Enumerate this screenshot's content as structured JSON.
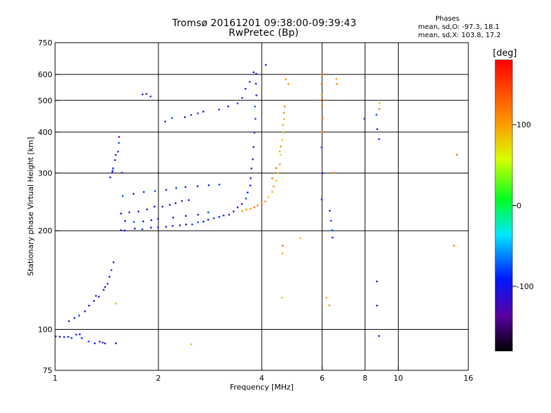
{
  "title": {
    "line1": "Tromsø 20161201 09:38:00-09:39:43",
    "line2": "RwPretec (Bp)"
  },
  "phase_box": {
    "heading": "Phases",
    "line_o": "mean, sd,O: -97.3, 18.1",
    "line_x": "mean, sd,X: 103.8, 17.2"
  },
  "chart_data": {
    "type": "scatter",
    "xlabel": "Frequency [MHz]",
    "ylabel": "Stationary phase Virtual Height [km]",
    "x_scale": "log",
    "y_scale": "log",
    "xlim": [
      1,
      16
    ],
    "ylim": [
      75,
      750
    ],
    "x_ticks": [
      1,
      2,
      4,
      6,
      8,
      10,
      16
    ],
    "x_tick_labels": [
      "1",
      "2",
      "4",
      "6",
      "8",
      "10",
      "16"
    ],
    "y_ticks": [
      75,
      100,
      200,
      300,
      400,
      500,
      600,
      750
    ],
    "y_tick_labels": [
      "75",
      "100",
      "200",
      "300",
      "400",
      "500",
      "600",
      "750"
    ],
    "x_gridlines": [
      2,
      4,
      6,
      8,
      10
    ],
    "y_gridlines": [
      100,
      200,
      300,
      400,
      500,
      600
    ],
    "grid": true,
    "colorbar": {
      "label": "[deg]",
      "range": [
        -180,
        180
      ],
      "ticks": [
        100,
        0,
        -100
      ],
      "tick_labels": [
        "100",
        "0",
        "-100"
      ]
    },
    "series": [
      {
        "mode": "O",
        "phase_deg": -100,
        "points": [
          [
            1.0,
            95
          ],
          [
            1.03,
            95
          ],
          [
            1.06,
            95
          ],
          [
            1.09,
            95
          ],
          [
            1.12,
            94
          ],
          [
            1.15,
            96
          ],
          [
            1.18,
            97
          ],
          [
            1.2,
            94
          ],
          [
            1.25,
            92
          ],
          [
            1.3,
            91
          ],
          [
            1.35,
            92
          ],
          [
            1.38,
            91
          ],
          [
            1.4,
            91
          ],
          [
            1.5,
            91
          ],
          [
            1.1,
            106
          ],
          [
            1.14,
            108
          ],
          [
            1.18,
            110
          ],
          [
            1.22,
            114
          ],
          [
            1.26,
            118
          ],
          [
            1.3,
            122
          ],
          [
            1.34,
            126
          ],
          [
            1.38,
            132
          ],
          [
            1.42,
            138
          ],
          [
            1.44,
            145
          ],
          [
            1.46,
            152
          ],
          [
            1.48,
            160
          ],
          [
            1.4,
            135
          ],
          [
            1.32,
            127
          ],
          [
            1.45,
            290
          ],
          [
            1.46,
            300
          ],
          [
            1.48,
            310
          ],
          [
            1.5,
            330
          ],
          [
            1.52,
            350
          ],
          [
            1.53,
            370
          ],
          [
            1.54,
            385
          ],
          [
            1.5,
            340
          ],
          [
            1.47,
            305
          ],
          [
            1.56,
            300
          ],
          [
            1.55,
            200
          ],
          [
            1.6,
            201
          ],
          [
            1.7,
            202
          ],
          [
            1.8,
            203
          ],
          [
            1.9,
            204
          ],
          [
            2.0,
            205
          ],
          [
            2.1,
            206
          ],
          [
            2.2,
            206
          ],
          [
            2.3,
            207
          ],
          [
            2.4,
            208
          ],
          [
            2.5,
            210
          ],
          [
            2.6,
            212
          ],
          [
            2.7,
            214
          ],
          [
            2.8,
            216
          ],
          [
            2.9,
            218
          ],
          [
            3.0,
            220
          ],
          [
            3.1,
            222
          ],
          [
            3.2,
            225
          ],
          [
            3.3,
            230
          ],
          [
            3.4,
            235
          ],
          [
            3.5,
            242
          ],
          [
            3.6,
            250
          ],
          [
            3.65,
            262
          ],
          [
            3.7,
            275
          ],
          [
            3.72,
            290
          ],
          [
            3.74,
            310
          ],
          [
            3.76,
            330
          ],
          [
            3.78,
            360
          ],
          [
            3.8,
            400
          ],
          [
            3.82,
            440
          ],
          [
            3.84,
            480
          ],
          [
            3.85,
            520
          ],
          [
            3.86,
            560
          ],
          [
            3.87,
            600
          ],
          [
            1.55,
            225
          ],
          [
            1.65,
            228
          ],
          [
            1.75,
            230
          ],
          [
            1.85,
            233
          ],
          [
            1.95,
            236
          ],
          [
            2.05,
            238
          ],
          [
            2.15,
            240
          ],
          [
            2.25,
            243
          ],
          [
            2.35,
            246
          ],
          [
            2.45,
            248
          ],
          [
            1.58,
            255
          ],
          [
            1.7,
            258
          ],
          [
            1.82,
            262
          ],
          [
            1.95,
            265
          ],
          [
            2.1,
            268
          ],
          [
            2.25,
            270
          ],
          [
            2.4,
            272
          ],
          [
            2.6,
            274
          ],
          [
            2.8,
            276
          ],
          [
            3.0,
            278
          ],
          [
            1.6,
            215
          ],
          [
            1.7,
            212
          ],
          [
            1.8,
            214
          ],
          [
            1.9,
            216
          ],
          [
            2.0,
            218
          ],
          [
            2.2,
            220
          ],
          [
            2.4,
            222
          ],
          [
            2.6,
            224
          ],
          [
            2.8,
            228
          ],
          [
            1.8,
            520
          ],
          [
            1.85,
            525
          ],
          [
            1.9,
            515
          ],
          [
            2.1,
            430
          ],
          [
            2.2,
            440
          ],
          [
            2.4,
            445
          ],
          [
            2.5,
            450
          ],
          [
            2.6,
            455
          ],
          [
            2.7,
            460
          ],
          [
            3.0,
            470
          ],
          [
            3.2,
            480
          ],
          [
            3.4,
            490
          ],
          [
            3.5,
            510
          ],
          [
            3.6,
            540
          ],
          [
            3.7,
            570
          ],
          [
            3.8,
            610
          ],
          [
            4.1,
            640
          ],
          [
            6.0,
            360
          ],
          [
            6.0,
            300
          ],
          [
            6.0,
            250
          ],
          [
            6.3,
            230
          ],
          [
            6.35,
            215
          ],
          [
            6.4,
            200
          ],
          [
            6.45,
            190
          ],
          [
            8.6,
            450
          ],
          [
            8.7,
            410
          ],
          [
            8.75,
            380
          ],
          [
            8.7,
            140
          ],
          [
            8.7,
            118
          ],
          [
            8.8,
            95
          ],
          [
            8.0,
            440
          ]
        ]
      },
      {
        "mode": "X",
        "phase_deg": 105,
        "points": [
          [
            3.5,
            230
          ],
          [
            3.6,
            232
          ],
          [
            3.7,
            234
          ],
          [
            3.8,
            236
          ],
          [
            3.9,
            238
          ],
          [
            4.0,
            242
          ],
          [
            4.1,
            246
          ],
          [
            4.2,
            252
          ],
          [
            4.3,
            262
          ],
          [
            4.35,
            272
          ],
          [
            4.4,
            285
          ],
          [
            4.45,
            300
          ],
          [
            4.5,
            320
          ],
          [
            4.52,
            340
          ],
          [
            4.55,
            360
          ],
          [
            4.58,
            380
          ],
          [
            4.6,
            400
          ],
          [
            4.62,
            420
          ],
          [
            4.63,
            440
          ],
          [
            4.64,
            460
          ],
          [
            4.65,
            480
          ],
          [
            4.4,
            310
          ],
          [
            4.3,
            290
          ],
          [
            4.5,
            350
          ],
          [
            6.0,
            600
          ],
          [
            6.0,
            560
          ],
          [
            6.0,
            520
          ],
          [
            6.0,
            480
          ],
          [
            6.0,
            440
          ],
          [
            6.0,
            400
          ],
          [
            5.9,
            500
          ],
          [
            6.6,
            580
          ],
          [
            6.6,
            560
          ],
          [
            8.8,
            490
          ],
          [
            8.8,
            470
          ],
          [
            4.7,
            580
          ],
          [
            4.8,
            560
          ],
          [
            5.2,
            190
          ],
          [
            4.6,
            180
          ],
          [
            4.6,
            170
          ],
          [
            4.6,
            125
          ],
          [
            6.2,
            125
          ],
          [
            6.3,
            118
          ],
          [
            6.5,
            300
          ],
          [
            2.5,
            90
          ],
          [
            1.5,
            120
          ],
          [
            14.5,
            180
          ],
          [
            14.8,
            340
          ]
        ]
      }
    ]
  }
}
